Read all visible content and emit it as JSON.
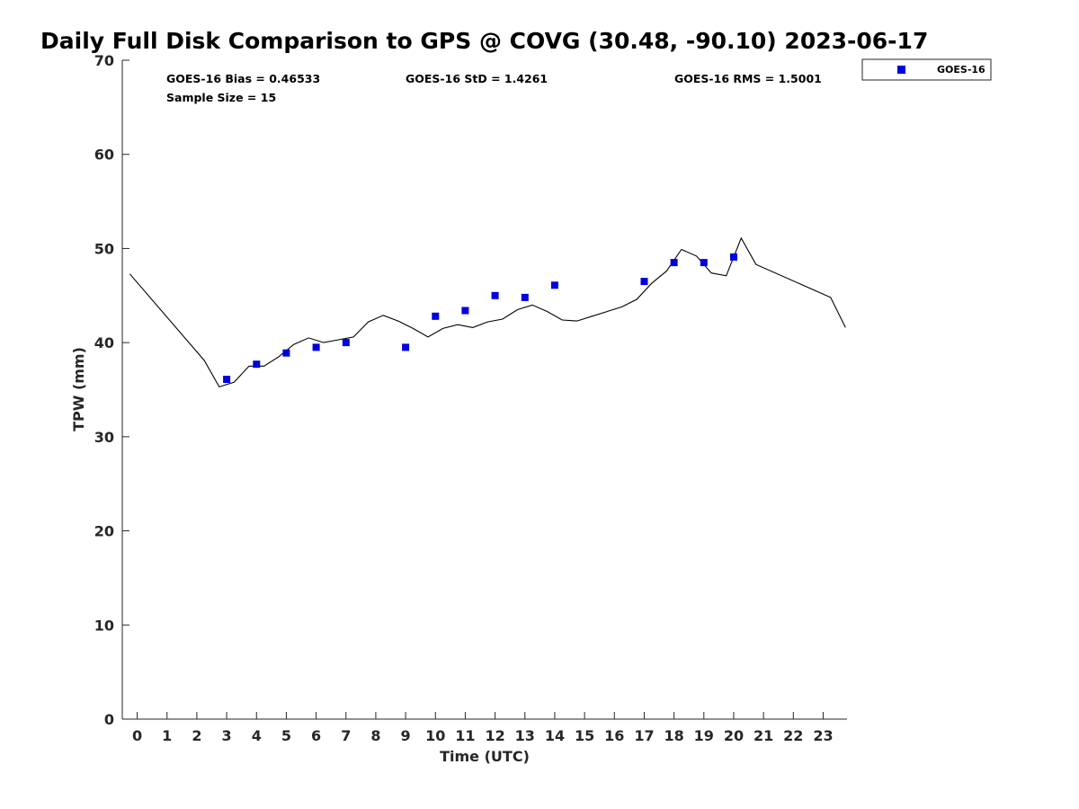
{
  "chart_data": {
    "type": "scatter",
    "title": "Daily Full Disk Comparison to GPS @ COVG (30.48, -90.10) 2023-06-17",
    "xlabel": "Time (UTC)",
    "ylabel": "TPW (mm)",
    "xlim": [
      -0.5,
      23.8
    ],
    "ylim": [
      0,
      70
    ],
    "xticks": [
      0,
      1,
      2,
      3,
      4,
      5,
      6,
      7,
      8,
      9,
      10,
      11,
      12,
      13,
      14,
      15,
      16,
      17,
      18,
      19,
      20,
      21,
      22,
      23
    ],
    "yticks": [
      0,
      10,
      20,
      30,
      40,
      50,
      60,
      70
    ],
    "grid": false,
    "legend_position": "top-right (outside plot)",
    "stats": {
      "bias": "GOES-16 Bias = 0.46533",
      "std": "GOES-16 StD = 1.4261",
      "rms": "GOES-16 RMS = 1.5001",
      "sample_size": "Sample Size = 15"
    },
    "series": [
      {
        "name": "GOES-16",
        "kind": "scatter",
        "color": "#0000dd",
        "marker": "square",
        "x": [
          3,
          4,
          5,
          6,
          7,
          9,
          10,
          11,
          12,
          13,
          14,
          17,
          18,
          19,
          20
        ],
        "y": [
          36.1,
          37.7,
          38.9,
          39.5,
          40.0,
          39.5,
          42.8,
          43.4,
          45.0,
          44.8,
          46.1,
          46.5,
          48.5,
          48.5,
          49.1
        ]
      },
      {
        "kind": "line",
        "color": "#000000",
        "x": [
          -0.25,
          2.25,
          2.75,
          3.25,
          3.75,
          4.25,
          4.75,
          5.25,
          5.75,
          6.25,
          6.75,
          7.25,
          7.75,
          8.25,
          8.75,
          9.25,
          9.75,
          10.25,
          10.75,
          11.25,
          11.75,
          12.25,
          12.75,
          13.25,
          13.75,
          14.25,
          14.75,
          15.25,
          15.75,
          16.25,
          16.75,
          17.25,
          17.75,
          18.25,
          18.75,
          19.25,
          19.75,
          20.25,
          20.75,
          23.25,
          23.75
        ],
        "y": [
          47.3,
          38.1,
          35.3,
          35.8,
          37.5,
          37.5,
          38.5,
          39.8,
          40.5,
          40.0,
          40.3,
          40.6,
          42.2,
          42.9,
          42.3,
          41.5,
          40.6,
          41.5,
          41.9,
          41.6,
          42.2,
          42.5,
          43.5,
          44.0,
          43.3,
          42.4,
          42.3,
          42.8,
          43.3,
          43.8,
          44.6,
          46.3,
          47.6,
          49.9,
          49.2,
          47.4,
          47.1,
          51.1,
          48.3,
          44.8,
          41.6
        ]
      }
    ]
  }
}
